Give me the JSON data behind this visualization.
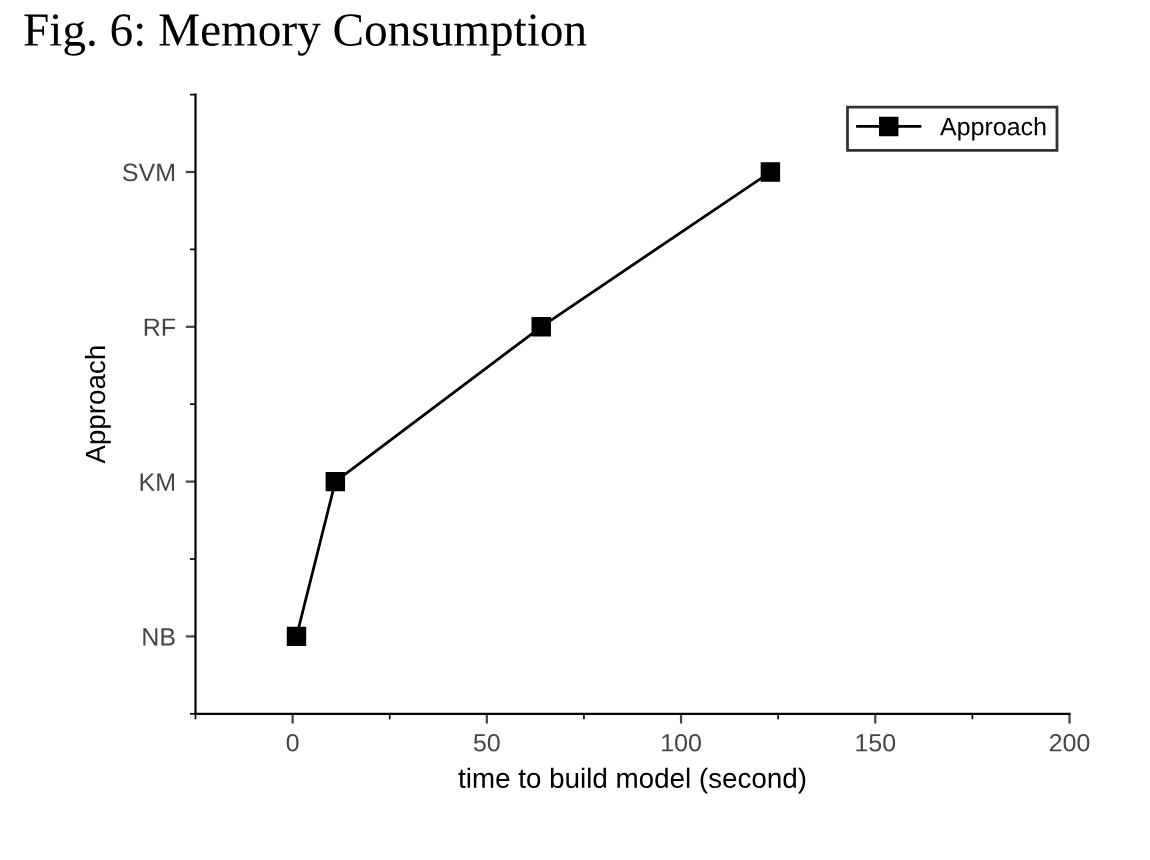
{
  "chart_data": {
    "type": "line",
    "orientation": "horizontal",
    "title": "Fig. 6: Memory Consumption",
    "xlabel": "time to build model (second)",
    "ylabel": "Approach",
    "categories": [
      "SVM",
      "RF",
      "KM",
      "NB"
    ],
    "series": [
      {
        "name": "Approach",
        "color": "#000000",
        "values": [
          123,
          64,
          11,
          1
        ]
      }
    ],
    "xlim": [
      -25,
      200
    ],
    "xticks": [
      0,
      50,
      100,
      150,
      200
    ],
    "marker": "square",
    "line_style": "solid",
    "legend": "top right",
    "grid": false
  }
}
